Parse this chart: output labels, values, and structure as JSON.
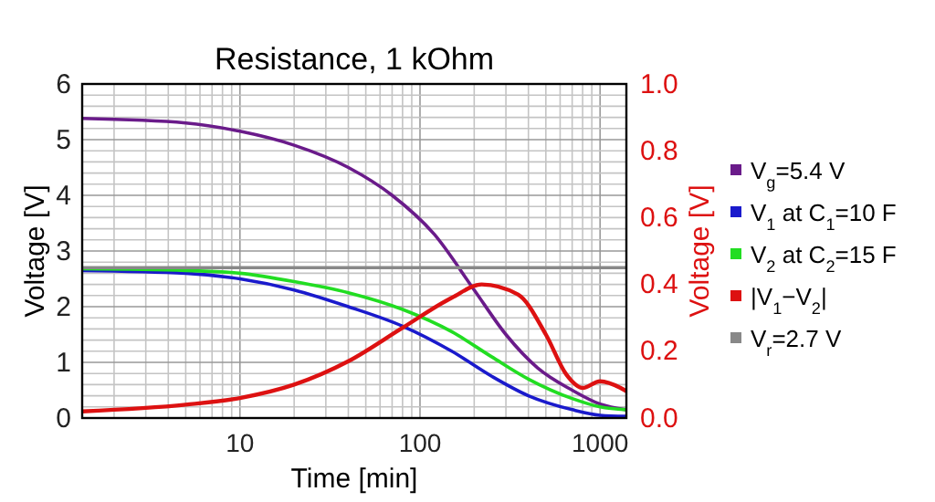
{
  "chart_data": {
    "type": "line",
    "title": "Resistance, 1 kOhm",
    "xlabel": "Time [min]",
    "ylabel": "Voltage [V]",
    "y2label": "Voltage [V]",
    "log": "x",
    "grid": true,
    "legend": "right",
    "line_style": "solid",
    "marker": "none",
    "xlim": [
      1.33,
      1400
    ],
    "xticks": [
      {
        "value": 2,
        "label": null
      },
      {
        "value": 3,
        "label": null
      },
      {
        "value": 4,
        "label": null
      },
      {
        "value": 5,
        "label": null
      },
      {
        "value": 6,
        "label": null
      },
      {
        "value": 7,
        "label": null
      },
      {
        "value": 8,
        "label": null
      },
      {
        "value": 9,
        "label": null
      },
      10,
      {
        "value": 20,
        "label": null
      },
      {
        "value": 30,
        "label": null
      },
      {
        "value": 40,
        "label": null
      },
      {
        "value": 50,
        "label": null
      },
      {
        "value": 60,
        "label": null
      },
      {
        "value": 70,
        "label": null
      },
      {
        "value": 80,
        "label": null
      },
      {
        "value": 90,
        "label": null
      },
      100,
      {
        "value": 200,
        "label": null
      },
      {
        "value": 300,
        "label": null
      },
      {
        "value": 400,
        "label": null
      },
      {
        "value": 500,
        "label": null
      },
      {
        "value": 600,
        "label": null
      },
      {
        "value": 700,
        "label": null
      },
      {
        "value": 800,
        "label": null
      },
      {
        "value": 900,
        "label": null
      },
      1000
    ],
    "ylim": [
      0,
      6
    ],
    "yticks": [
      0,
      {
        "value": 0.2,
        "label": null
      },
      {
        "value": 0.4,
        "label": null
      },
      {
        "value": 0.6,
        "label": null
      },
      {
        "value": 0.8,
        "label": null
      },
      1,
      {
        "value": 1.2,
        "label": null
      },
      {
        "value": 1.4,
        "label": null
      },
      {
        "value": 1.6,
        "label": null
      },
      {
        "value": 1.8,
        "label": null
      },
      2,
      {
        "value": 2.2,
        "label": null
      },
      {
        "value": 2.4,
        "label": null
      },
      {
        "value": 2.6,
        "label": null
      },
      {
        "value": 2.8,
        "label": null
      },
      3,
      {
        "value": 3.2,
        "label": null
      },
      {
        "value": 3.4,
        "label": null
      },
      {
        "value": 3.6,
        "label": null
      },
      {
        "value": 3.8,
        "label": null
      },
      4,
      {
        "value": 4.2,
        "label": null
      },
      {
        "value": 4.4,
        "label": null
      },
      {
        "value": 4.6,
        "label": null
      },
      {
        "value": 4.8,
        "label": null
      },
      5,
      {
        "value": 5.2,
        "label": null
      },
      {
        "value": 5.4,
        "label": null
      },
      {
        "value": 5.6,
        "label": null
      },
      {
        "value": 5.8,
        "label": null
      },
      6
    ],
    "y2lim": [
      0,
      1
    ],
    "y2ticks": [
      {
        "value": 0,
        "label": "0.0"
      },
      {
        "value": 0.2,
        "label": "0.2"
      },
      {
        "value": 0.4,
        "label": "0.4"
      },
      {
        "value": 0.6,
        "label": "0.6"
      },
      {
        "value": 0.8,
        "label": "0.8"
      },
      {
        "value": 1,
        "label": "1.0"
      }
    ],
    "series": [
      {
        "name": "V$_{g}$=5.4 V",
        "color": "#6a1b8a",
        "x": [
          1.33,
          5,
          10,
          20,
          40,
          70,
          120,
          200,
          300,
          450,
          700,
          1000,
          1400
        ],
        "values": [
          5.38,
          5.3,
          5.15,
          4.9,
          4.5,
          4.0,
          3.3,
          2.3,
          1.5,
          0.9,
          0.5,
          0.25,
          0.15
        ]
      },
      {
        "name": "V$_{1}$ at C$_{1}$=10 F",
        "color": "#1a1acc",
        "x": [
          1.33,
          5,
          10,
          20,
          40,
          80,
          150,
          250,
          400,
          700,
          1000,
          1400
        ],
        "values": [
          2.65,
          2.6,
          2.5,
          2.3,
          2.0,
          1.65,
          1.2,
          0.75,
          0.4,
          0.15,
          0.05,
          0.03
        ]
      },
      {
        "name": "V$_{2}$ at C$_{2}$=15 F",
        "color": "#22dd22",
        "x": [
          1.33,
          5,
          10,
          20,
          40,
          80,
          150,
          250,
          400,
          700,
          1000,
          1400
        ],
        "values": [
          2.68,
          2.65,
          2.6,
          2.45,
          2.25,
          1.95,
          1.55,
          1.1,
          0.7,
          0.35,
          0.2,
          0.15
        ]
      },
      {
        "name": "|V$_{1}$−V$_{2}$|",
        "color": "#dd1111",
        "axis": "y2",
        "x": [
          1.33,
          5,
          10,
          20,
          40,
          80,
          150,
          220,
          350,
          500,
          650,
          800,
          1000,
          1300,
          1400
        ],
        "values": [
          0.02,
          0.04,
          0.06,
          0.1,
          0.17,
          0.27,
          0.36,
          0.4,
          0.37,
          0.25,
          0.13,
          0.09,
          0.11,
          0.09,
          0.08
        ]
      },
      {
        "name": "V$_{r}$=2.7 V",
        "color": "#888888",
        "x": [
          1.33,
          1400
        ],
        "values": [
          2.7,
          2.7
        ]
      }
    ]
  }
}
